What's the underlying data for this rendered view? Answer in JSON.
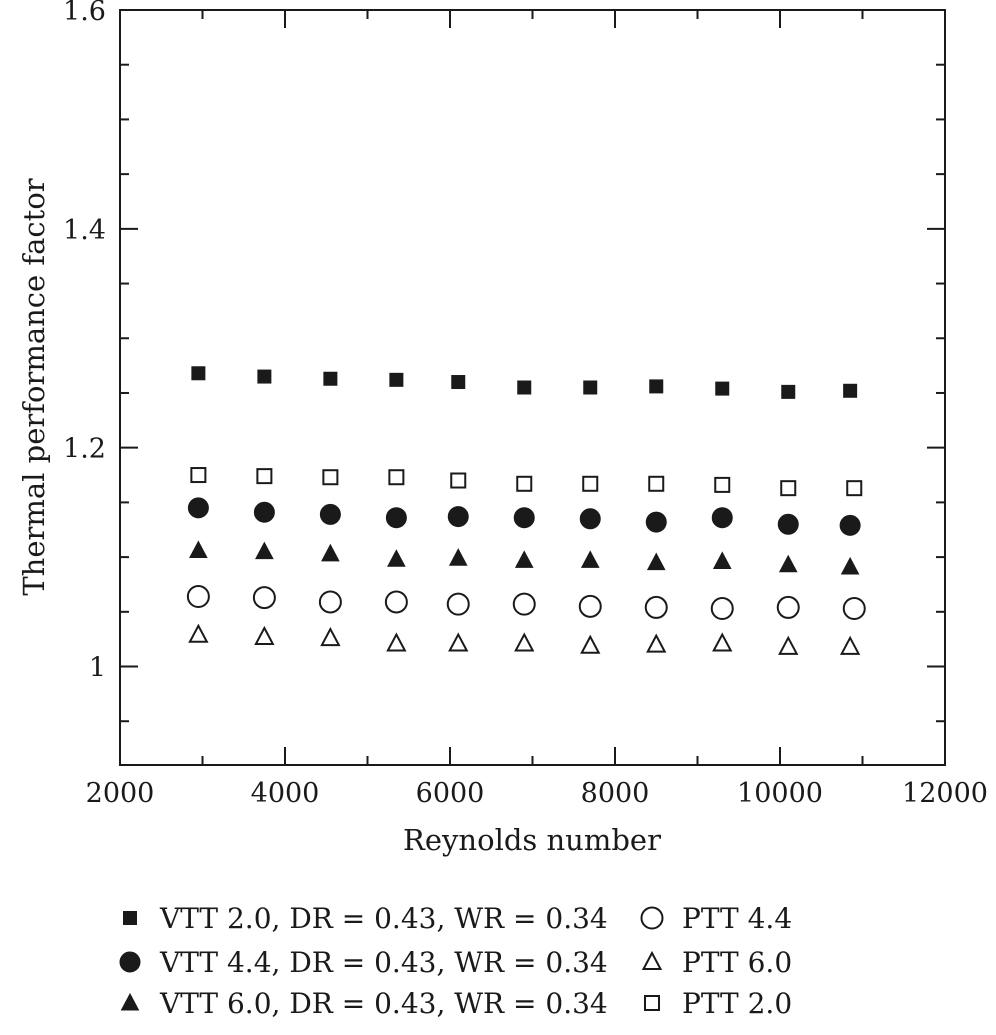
{
  "chart_data": {
    "type": "scatter",
    "title": "",
    "xlabel": "Reynolds number",
    "ylabel": "Thermal performance factor",
    "xlim": [
      2000,
      12000
    ],
    "ylim": [
      0.91,
      1.6
    ],
    "xticks": [
      2000,
      4000,
      6000,
      8000,
      10000,
      12000
    ],
    "xtick_labels": [
      "2000",
      "4000",
      "6000",
      "8000",
      "10000",
      "12000"
    ],
    "yticks": [
      1.0,
      1.2,
      1.4,
      1.6
    ],
    "ytick_labels": [
      "1",
      "1.2",
      "1.4",
      "1.6"
    ],
    "grid": false,
    "legend_position": "bottom",
    "series": [
      {
        "name": "VTT 2.0, DR = 0.43, WR = 0.34",
        "marker": "square-filled",
        "x": [
          2950,
          3750,
          4550,
          5350,
          6100,
          6900,
          7700,
          8500,
          9300,
          10100,
          10850
        ],
        "y": [
          1.268,
          1.265,
          1.263,
          1.262,
          1.26,
          1.255,
          1.255,
          1.256,
          1.254,
          1.251,
          1.252
        ]
      },
      {
        "name": "VTT 4.4, DR = 0.43, WR = 0.34",
        "marker": "circle-filled",
        "x": [
          2950,
          3750,
          4550,
          5350,
          6100,
          6900,
          7700,
          8500,
          9300,
          10100,
          10850
        ],
        "y": [
          1.145,
          1.141,
          1.139,
          1.136,
          1.137,
          1.136,
          1.135,
          1.132,
          1.136,
          1.13,
          1.129
        ]
      },
      {
        "name": "VTT 6.0, DR = 0.43, WR = 0.34",
        "marker": "triangle-filled",
        "x": [
          2950,
          3750,
          4550,
          5350,
          6100,
          6900,
          7700,
          8500,
          9300,
          10100,
          10850
        ],
        "y": [
          1.106,
          1.105,
          1.103,
          1.098,
          1.099,
          1.097,
          1.097,
          1.095,
          1.096,
          1.093,
          1.091
        ]
      },
      {
        "name": "PTT 4.4",
        "marker": "circle-open",
        "x": [
          2950,
          3750,
          4550,
          5350,
          6100,
          6900,
          7700,
          8500,
          9300,
          10100,
          10900
        ],
        "y": [
          1.064,
          1.063,
          1.059,
          1.059,
          1.057,
          1.057,
          1.055,
          1.054,
          1.053,
          1.054,
          1.053
        ]
      },
      {
        "name": "PTT 6.0",
        "marker": "triangle-open",
        "x": [
          2950,
          3750,
          4550,
          5350,
          6100,
          6900,
          7700,
          8500,
          9300,
          10100,
          10850
        ],
        "y": [
          1.029,
          1.027,
          1.026,
          1.021,
          1.021,
          1.021,
          1.019,
          1.02,
          1.021,
          1.018,
          1.018
        ]
      },
      {
        "name": "PTT 2.0",
        "marker": "square-open",
        "x": [
          2950,
          3750,
          4550,
          5350,
          6100,
          6900,
          7700,
          8500,
          9300,
          10100,
          10900
        ],
        "y": [
          1.175,
          1.174,
          1.173,
          1.173,
          1.17,
          1.167,
          1.167,
          1.167,
          1.166,
          1.163,
          1.163
        ]
      }
    ]
  }
}
